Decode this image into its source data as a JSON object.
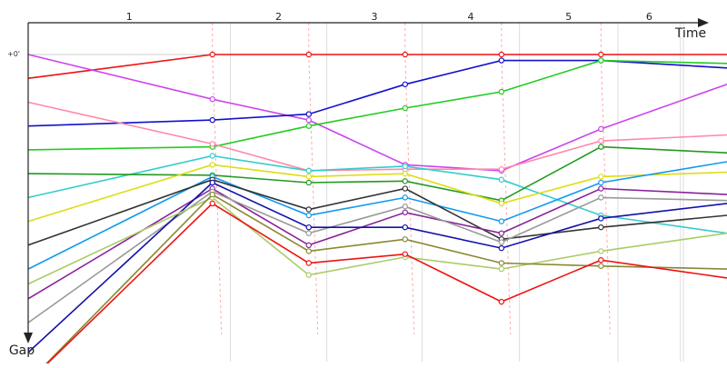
{
  "chart_data": {
    "type": "line",
    "title": "",
    "xlabel": "Time",
    "ylabel": "Gap",
    "y_tick_label": "+0'",
    "y_axis_inverted": true,
    "laps": [
      {
        "label": "1",
        "start": 0,
        "end": 1.91
      },
      {
        "label": "2",
        "start": 1.91,
        "end": 2.82
      },
      {
        "label": "3",
        "start": 2.82,
        "end": 3.72
      },
      {
        "label": "4",
        "start": 3.72,
        "end": 4.64
      },
      {
        "label": "5",
        "start": 4.64,
        "end": 5.57
      },
      {
        "label": "6",
        "start": 5.57,
        "end": 6.16
      }
    ],
    "x_range": [
      0,
      6.6
    ],
    "y_range": [
      0,
      1
    ],
    "series": [
      {
        "color": "#ee1111",
        "points": [
          [
            0,
            0.08
          ],
          [
            1.74,
            0
          ],
          [
            2.65,
            0
          ],
          [
            3.56,
            0
          ],
          [
            4.47,
            0
          ],
          [
            5.41,
            0
          ],
          [
            6.6,
            0
          ]
        ],
        "labels": [
          [
            5.41,
            0
          ],
          [
            6.6,
            0.055
          ]
        ],
        "labels_color": "#ee1111"
      },
      {
        "color": "#cc44ee",
        "points": [
          [
            0,
            0
          ],
          [
            1.74,
            0.15
          ],
          [
            2.65,
            0.22
          ],
          [
            3.56,
            0.37
          ],
          [
            4.47,
            0.39
          ],
          [
            5.41,
            0.25
          ],
          [
            6.6,
            0.1
          ]
        ]
      },
      {
        "color": "#1111cc",
        "points": [
          [
            0,
            0.24
          ],
          [
            1.74,
            0.22
          ],
          [
            2.65,
            0.2
          ],
          [
            3.56,
            0.1
          ],
          [
            4.47,
            0.02
          ],
          [
            5.41,
            0.02
          ],
          [
            6.6,
            0.045
          ]
        ]
      },
      {
        "color": "#22cc22",
        "points": [
          [
            0,
            0.32
          ],
          [
            1.74,
            0.31
          ],
          [
            2.65,
            0.24
          ],
          [
            3.56,
            0.18
          ],
          [
            4.47,
            0.125
          ],
          [
            5.41,
            0.02
          ],
          [
            6.6,
            0.03
          ]
        ]
      },
      {
        "color": "#ff88aa",
        "points": [
          [
            0,
            0.16
          ],
          [
            1.74,
            0.3
          ],
          [
            2.65,
            0.39
          ],
          [
            3.56,
            0.385
          ],
          [
            4.47,
            0.385
          ],
          [
            5.41,
            0.29
          ],
          [
            6.6,
            0.27
          ]
        ]
      },
      {
        "color": "#33cccc",
        "points": [
          [
            0,
            0.48
          ],
          [
            1.74,
            0.34
          ],
          [
            2.65,
            0.39
          ],
          [
            3.56,
            0.375
          ],
          [
            4.47,
            0.42
          ],
          [
            5.41,
            0.54
          ],
          [
            6.6,
            0.6
          ]
        ]
      },
      {
        "color": "#229922",
        "points": [
          [
            0,
            0.4
          ],
          [
            1.74,
            0.405
          ],
          [
            2.65,
            0.43
          ],
          [
            3.56,
            0.425
          ],
          [
            4.47,
            0.49
          ],
          [
            5.41,
            0.31
          ],
          [
            6.6,
            0.33
          ]
        ]
      },
      {
        "color": "#dddd11",
        "points": [
          [
            0,
            0.56
          ],
          [
            1.74,
            0.37
          ],
          [
            2.65,
            0.41
          ],
          [
            3.56,
            0.4
          ],
          [
            4.47,
            0.5
          ],
          [
            5.41,
            0.41
          ],
          [
            6.6,
            0.395
          ]
        ]
      },
      {
        "color": "#1199ee",
        "points": [
          [
            0,
            0.72
          ],
          [
            1.74,
            0.41
          ],
          [
            2.65,
            0.54
          ],
          [
            3.56,
            0.48
          ],
          [
            4.47,
            0.56
          ],
          [
            5.41,
            0.43
          ],
          [
            6.6,
            0.36
          ]
        ]
      },
      {
        "color": "#333333",
        "points": [
          [
            0,
            0.64
          ],
          [
            1.74,
            0.42
          ],
          [
            2.65,
            0.52
          ],
          [
            3.56,
            0.45
          ],
          [
            4.47,
            0.62
          ],
          [
            5.41,
            0.58
          ],
          [
            6.6,
            0.54
          ]
        ]
      },
      {
        "color": "#882299",
        "points": [
          [
            0,
            0.82
          ],
          [
            1.74,
            0.45
          ],
          [
            2.65,
            0.64
          ],
          [
            3.56,
            0.53
          ],
          [
            4.47,
            0.6
          ],
          [
            5.41,
            0.45
          ],
          [
            6.6,
            0.47
          ]
        ]
      },
      {
        "color": "#999999",
        "points": [
          [
            0,
            0.9
          ],
          [
            1.74,
            0.46
          ],
          [
            2.65,
            0.6
          ],
          [
            3.56,
            0.51
          ],
          [
            4.47,
            0.63
          ],
          [
            5.41,
            0.48
          ],
          [
            6.6,
            0.49
          ]
        ]
      },
      {
        "color": "#1111aa",
        "points": [
          [
            0,
            1.0
          ],
          [
            1.74,
            0.43
          ],
          [
            2.65,
            0.58
          ],
          [
            3.56,
            0.58
          ],
          [
            4.47,
            0.65
          ],
          [
            5.41,
            0.55
          ],
          [
            6.6,
            0.5
          ]
        ]
      },
      {
        "color": "#aacc66",
        "points": [
          [
            0,
            0.77
          ],
          [
            1.74,
            0.48
          ],
          [
            2.65,
            0.74
          ],
          [
            3.56,
            0.68
          ],
          [
            4.47,
            0.72
          ],
          [
            5.41,
            0.66
          ],
          [
            6.6,
            0.6
          ]
        ]
      },
      {
        "color": "#888833",
        "points": [
          [
            0,
            1.1
          ],
          [
            1.74,
            0.47
          ],
          [
            2.65,
            0.66
          ],
          [
            3.56,
            0.62
          ],
          [
            4.47,
            0.7
          ],
          [
            5.41,
            0.71
          ],
          [
            6.6,
            0.72
          ]
        ]
      },
      {
        "color": "#ee1111",
        "points": [
          [
            0,
            1.1
          ],
          [
            1.74,
            0.5
          ],
          [
            2.65,
            0.7
          ],
          [
            3.56,
            0.67
          ],
          [
            4.47,
            0.83
          ],
          [
            5.41,
            0.69
          ],
          [
            6.6,
            0.75
          ]
        ]
      }
    ]
  }
}
